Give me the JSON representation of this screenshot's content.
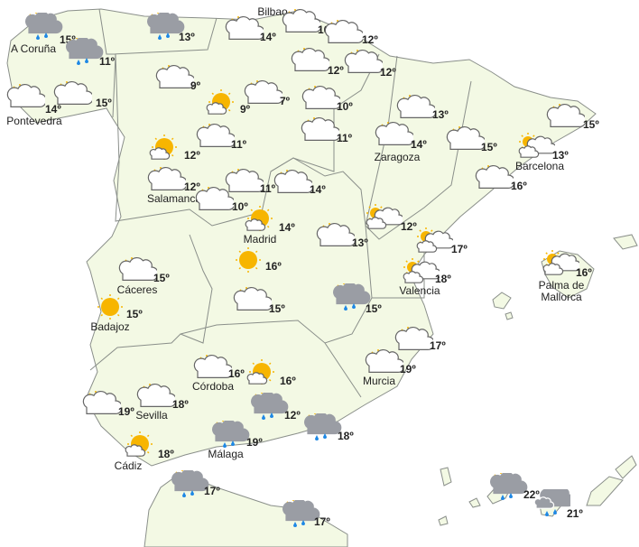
{
  "map": {
    "land_color": "#f3f9e4",
    "border_color": "#8a8f8a",
    "sun_color": "#f7b500",
    "rain_color": "#1e88e5"
  },
  "markers": [
    {
      "icon": "partly-cloudy-rain",
      "temp": "15º",
      "city": "A Coruña"
    },
    {
      "icon": "partly-cloudy-rain",
      "temp": "11º"
    },
    {
      "icon": "partly-cloudy",
      "temp": "14º",
      "city": "Pontevedra"
    },
    {
      "icon": "partly-cloudy",
      "temp": "15º"
    },
    {
      "icon": "partly-cloudy-rain",
      "temp": "13º"
    },
    {
      "icon": "partly-cloudy",
      "temp": "14º",
      "city": "Bilbao"
    },
    {
      "icon": "partly-cloudy",
      "temp": "16º"
    },
    {
      "icon": "partly-cloudy",
      "temp": "12º"
    },
    {
      "icon": "partly-cloudy",
      "temp": "12º"
    },
    {
      "icon": "partly-cloudy",
      "temp": "12º"
    },
    {
      "icon": "partly-cloudy",
      "temp": "9º"
    },
    {
      "icon": "sunny-small-cloud",
      "temp": "9º"
    },
    {
      "icon": "partly-cloudy",
      "temp": "7º"
    },
    {
      "icon": "partly-cloudy",
      "temp": "10º"
    },
    {
      "icon": "partly-cloudy",
      "temp": "11º"
    },
    {
      "icon": "partly-cloudy",
      "temp": "13º"
    },
    {
      "icon": "partly-cloudy",
      "temp": "14º",
      "city": "Zaragoza"
    },
    {
      "icon": "partly-cloudy",
      "temp": "15º"
    },
    {
      "icon": "partly-cloudy",
      "temp": "15º"
    },
    {
      "icon": "partly-cloudy-two-clouds",
      "temp": "13º",
      "city": "Barcelona"
    },
    {
      "icon": "partly-cloudy",
      "temp": "16º"
    },
    {
      "icon": "sunny-small-cloud",
      "temp": "12º"
    },
    {
      "icon": "partly-cloudy",
      "temp": "11º"
    },
    {
      "icon": "partly-cloudy",
      "temp": "12º",
      "city": "Salamanca"
    },
    {
      "icon": "partly-cloudy",
      "temp": "10º"
    },
    {
      "icon": "partly-cloudy",
      "temp": "11º"
    },
    {
      "icon": "partly-cloudy",
      "temp": "14º"
    },
    {
      "icon": "sunny-small-cloud",
      "temp": "14º",
      "city": "Madrid"
    },
    {
      "icon": "partly-cloudy-two-clouds",
      "temp": "12º"
    },
    {
      "icon": "partly-cloudy",
      "temp": "13º"
    },
    {
      "icon": "partly-cloudy-two-clouds",
      "temp": "17º"
    },
    {
      "icon": "sunny",
      "temp": "16º"
    },
    {
      "icon": "partly-cloudy",
      "temp": "15º",
      "city": "Cáceres"
    },
    {
      "icon": "sunny",
      "temp": "15º",
      "city": "Badajoz"
    },
    {
      "icon": "partly-cloudy",
      "temp": "15º"
    },
    {
      "icon": "partly-cloudy-rain",
      "temp": "15º"
    },
    {
      "icon": "partly-cloudy-two-clouds",
      "temp": "18º",
      "city": "Valencia"
    },
    {
      "icon": "partly-cloudy-two-clouds",
      "temp": "16º",
      "city": "Palma de\nMallorca"
    },
    {
      "icon": "partly-cloudy",
      "temp": "17º"
    },
    {
      "icon": "partly-cloudy",
      "temp": "19º",
      "city": "Murcia"
    },
    {
      "icon": "partly-cloudy",
      "temp": "16º",
      "city": "Córdoba"
    },
    {
      "icon": "sunny-small-cloud",
      "temp": "16º"
    },
    {
      "icon": "partly-cloudy",
      "temp": "19º"
    },
    {
      "icon": "partly-cloudy",
      "temp": "18º",
      "city": "Sevilla"
    },
    {
      "icon": "partly-cloudy-rain",
      "temp": "12º"
    },
    {
      "icon": "partly-cloudy-rain",
      "temp": "18º"
    },
    {
      "icon": "sunny-small-cloud",
      "temp": "18º",
      "city": "Cádiz"
    },
    {
      "icon": "partly-cloudy-rain",
      "temp": "19º",
      "city": "Málaga"
    },
    {
      "icon": "partly-cloudy-rain",
      "temp": "17º"
    },
    {
      "icon": "partly-cloudy-rain",
      "temp": "17º"
    },
    {
      "icon": "partly-cloudy-rain",
      "temp": "22º"
    },
    {
      "icon": "rain-two-clouds",
      "temp": "21º"
    }
  ]
}
